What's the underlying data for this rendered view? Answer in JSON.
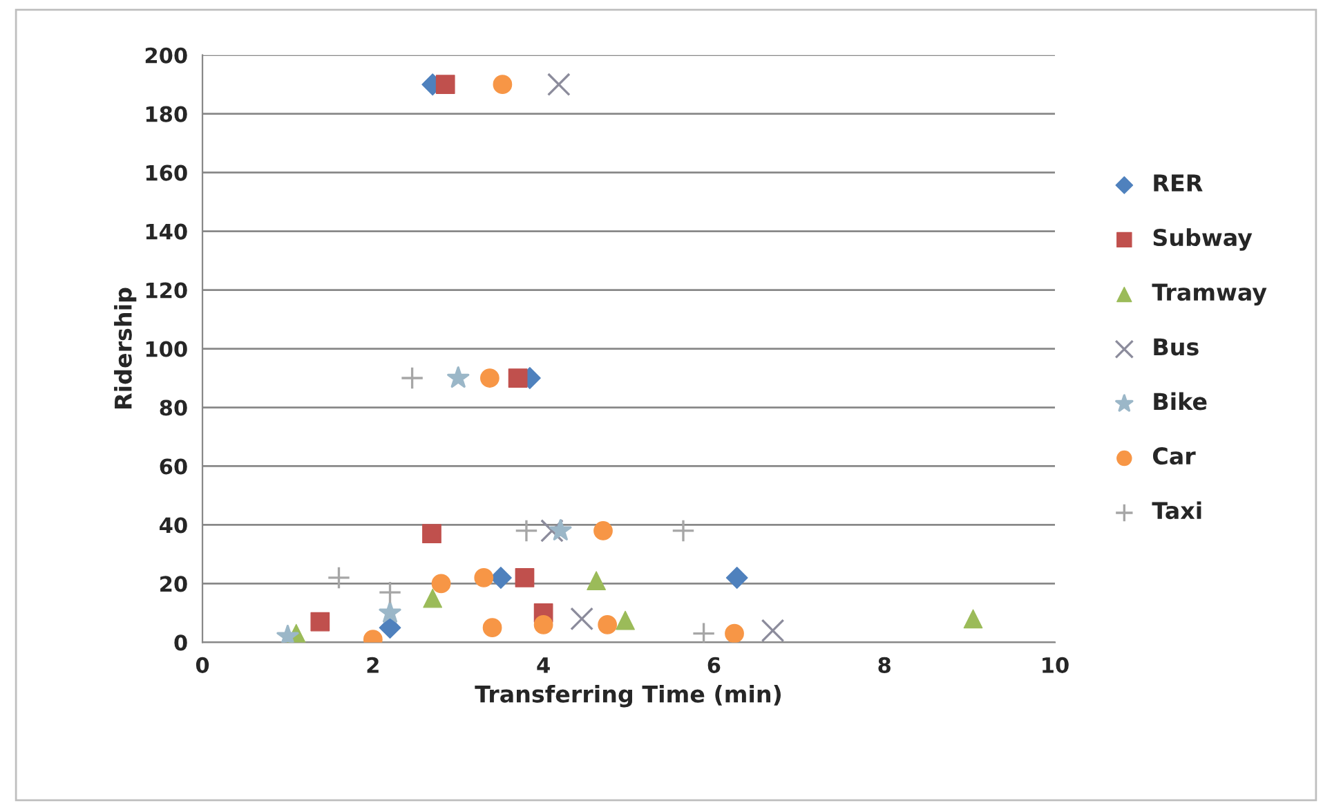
{
  "chart_data": {
    "type": "scatter",
    "xlabel": "Transferring Time (min)",
    "ylabel": "Ridership",
    "xlim": [
      0,
      10
    ],
    "xticks": [
      0,
      2,
      4,
      6,
      8,
      10
    ],
    "ylim": [
      0,
      200
    ],
    "yticks": [
      0,
      20,
      40,
      60,
      80,
      100,
      120,
      140,
      160,
      180,
      200
    ],
    "grid": "y",
    "legend": "right",
    "series": [
      {
        "name": "RER",
        "color": "#4f81bd",
        "marker": "diamond",
        "x": [
          2.7,
          3.84,
          6.27,
          3.5,
          2.2
        ],
        "values": [
          190,
          90,
          22,
          22,
          5
        ]
      },
      {
        "name": "Subway",
        "color": "#c0504d",
        "marker": "square",
        "x": [
          2.85,
          3.7,
          2.69,
          3.78,
          4.0,
          1.38
        ],
        "values": [
          190,
          90,
          37,
          22,
          10,
          7
        ]
      },
      {
        "name": "Tramway",
        "color": "#9bbb59",
        "marker": "triangle",
        "x": [
          9.04,
          4.62,
          4.96,
          2.7,
          1.1
        ],
        "values": [
          8,
          21,
          7.5,
          15,
          3
        ]
      },
      {
        "name": "Bus",
        "color": "#8c8c9c",
        "marker": "cross",
        "x": [
          4.18,
          6.69,
          4.45,
          4.1
        ],
        "values": [
          190,
          4,
          8,
          38
        ]
      },
      {
        "name": "Bike",
        "color": "#9bb7c8",
        "marker": "star",
        "x": [
          3.0,
          4.2,
          1.0,
          2.2
        ],
        "values": [
          90,
          38,
          2,
          10
        ]
      },
      {
        "name": "Car",
        "color": "#f79646",
        "marker": "circle",
        "x": [
          3.52,
          3.37,
          4.7,
          6.24,
          3.3,
          2.8,
          2.0,
          3.4,
          4.75,
          4.0
        ],
        "values": [
          190,
          90,
          38,
          3,
          22,
          20,
          1,
          5,
          6,
          6
        ]
      },
      {
        "name": "Taxi",
        "color": "#a6a6a6",
        "marker": "plus",
        "x": [
          2.46,
          5.64,
          1.6,
          5.88,
          2.2,
          3.8
        ],
        "values": [
          90,
          38,
          22,
          3,
          17,
          38
        ]
      }
    ]
  }
}
